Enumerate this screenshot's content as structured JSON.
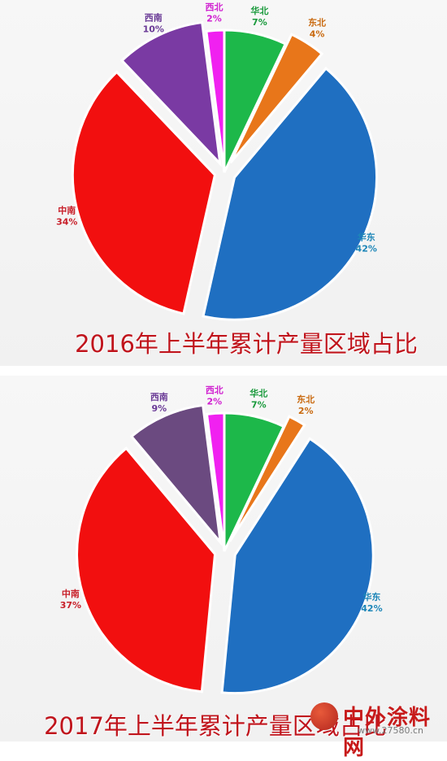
{
  "chart_data": [
    {
      "type": "pie",
      "title": "2016年上半年累计产量区域占比",
      "slices": [
        {
          "label": "华北",
          "value": 7,
          "display": "7%",
          "color": "#1db84a",
          "text_color": "#1a9a3c",
          "explode": 0
        },
        {
          "label": "东北",
          "value": 4,
          "display": "4%",
          "color": "#e8761a",
          "text_color": "#c96a10",
          "explode": 14
        },
        {
          "label": "华东",
          "value": 42,
          "display": "42%",
          "color": "#1f6fc1",
          "text_color": "#1d86b8",
          "explode": 14
        },
        {
          "label": "中南",
          "value": 34,
          "display": "34%",
          "color": "#f20f0f",
          "text_color": "#c8202a",
          "explode": 12
        },
        {
          "label": "西南",
          "value": 10,
          "display": "10%",
          "color": "#7a3aa3",
          "text_color": "#6a3a96",
          "explode": 12
        },
        {
          "label": "西北",
          "value": 2,
          "display": "2%",
          "color": "#f021f0",
          "text_color": "#d020d0",
          "explode": 0
        }
      ]
    },
    {
      "type": "pie",
      "title": "2017年上半年累计产量区域占比",
      "slices": [
        {
          "label": "华北",
          "value": 7,
          "display": "7%",
          "color": "#1db84a",
          "text_color": "#1a9a3c",
          "explode": 0
        },
        {
          "label": "东北",
          "value": 2,
          "display": "2%",
          "color": "#e8761a",
          "text_color": "#c96a10",
          "explode": 14
        },
        {
          "label": "华东",
          "value": 42,
          "display": "42%",
          "color": "#1f6fc1",
          "text_color": "#1d86b8",
          "explode": 14
        },
        {
          "label": "中南",
          "value": 37,
          "display": "37%",
          "color": "#f20f0f",
          "text_color": "#c8202a",
          "explode": 12
        },
        {
          "label": "西南",
          "value": 9,
          "display": "9%",
          "color": "#6b4a80",
          "text_color": "#6a3a96",
          "explode": 12
        },
        {
          "label": "西北",
          "value": 2,
          "display": "2%",
          "color": "#f021f0",
          "text_color": "#d020d0",
          "explode": 0
        }
      ]
    }
  ],
  "watermark": {
    "brand": "中外涂料网",
    "url": "www.27580.cn"
  }
}
